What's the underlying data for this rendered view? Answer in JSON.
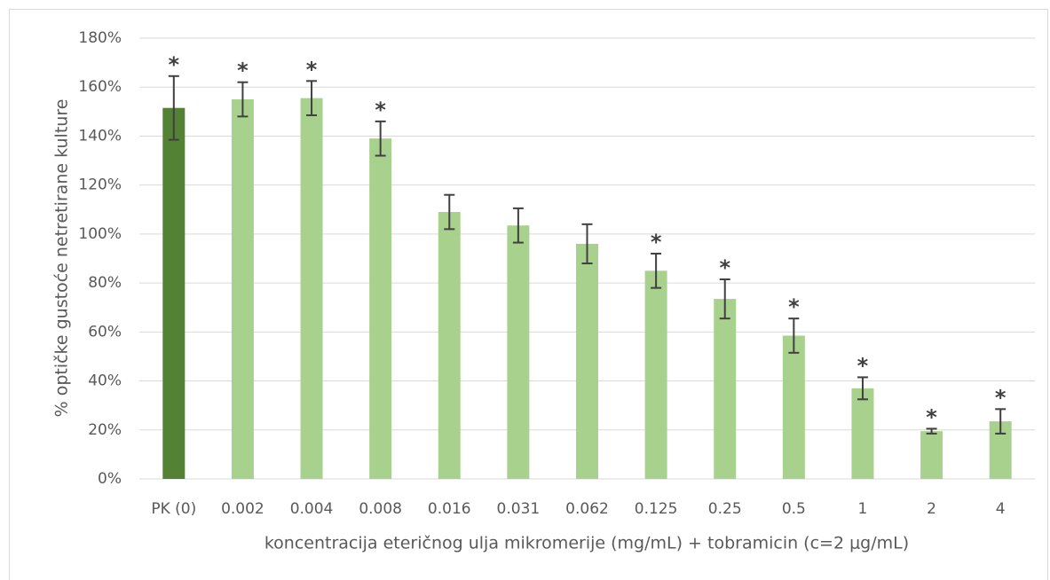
{
  "chart_data": {
    "type": "bar",
    "xlabel": "koncentracija eteričnog ulja mikromerije (mg/mL) + tobramicin (c=2 μg/mL)",
    "ylabel": "% optičke gustoće netretirane kulture",
    "categories": [
      "PK (0)",
      "0.002",
      "0.004",
      "0.008",
      "0.016",
      "0.031",
      "0.062",
      "0.125",
      "0.25",
      "0.5",
      "1",
      "2",
      "4"
    ],
    "values": [
      151.5,
      155,
      155.5,
      139,
      109,
      103.5,
      96,
      85,
      73.5,
      58.5,
      37,
      19.5,
      23.5
    ],
    "errors": [
      13,
      7,
      7,
      7,
      7,
      7,
      8,
      7,
      8,
      7,
      4.5,
      1,
      5
    ],
    "annotations": [
      "*",
      "*",
      "*",
      "*",
      null,
      null,
      null,
      "*",
      "*",
      "*",
      "*",
      "*",
      "*"
    ],
    "colors": [
      "#548235",
      "#a9d18e",
      "#a9d18e",
      "#a9d18e",
      "#a9d18e",
      "#a9d18e",
      "#a9d18e",
      "#a9d18e",
      "#a9d18e",
      "#a9d18e",
      "#a9d18e",
      "#a9d18e",
      "#a9d18e"
    ],
    "ylim": [
      0,
      180
    ],
    "yticks": [
      {
        "value": 0,
        "label": "0%"
      },
      {
        "value": 20,
        "label": "20%"
      },
      {
        "value": 40,
        "label": "40%"
      },
      {
        "value": 60,
        "label": "60%"
      },
      {
        "value": 80,
        "label": "80%"
      },
      {
        "value": 100,
        "label": "100%"
      },
      {
        "value": 120,
        "label": "120%"
      },
      {
        "value": 140,
        "label": "140%"
      },
      {
        "value": 160,
        "label": "160%"
      },
      {
        "value": 180,
        "label": "180%"
      }
    ],
    "grid": true
  }
}
